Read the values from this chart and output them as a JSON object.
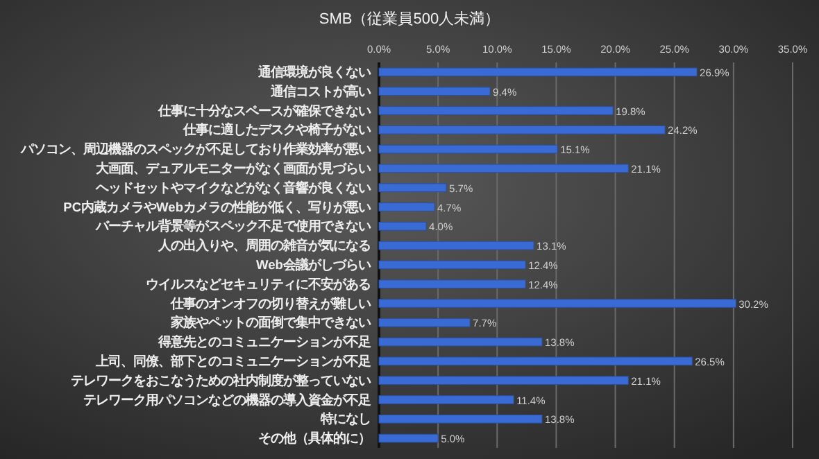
{
  "chart_data": {
    "type": "bar",
    "orientation": "horizontal",
    "title": "SMB（従業員500人未満）",
    "categories": [
      "通信環境が良くない",
      "通信コストが高い",
      "仕事に十分なスペースが確保できない",
      "仕事に適したデスクや椅子がない",
      "パソコン、周辺機器のスペックが不足しており作業効率が悪い",
      "大画面、デュアルモニターがなく画面が見づらい",
      "ヘッドセットやマイクなどがなく音響が良くない",
      "PC内蔵カメラやWebカメラの性能が低く、写りが悪い",
      "バーチャル背景等がスペック不足で使用できない",
      "人の出入りや、周囲の雑音が気になる",
      "Web会議がしづらい",
      "ウイルスなどセキュリティに不安がある",
      "仕事のオンオフの切り替えが難しい",
      "家族やペットの面倒で集中できない",
      "得意先とのコミュニケーションが不足",
      "上司、同僚、部下とのコミュニケーションが不足",
      "テレワークをおこなうための社内制度が整っていない",
      "テレワーク用パソコンなどの機器の導入資金が不足",
      "特になし",
      "その他（具体的に）"
    ],
    "values": [
      26.9,
      9.4,
      19.8,
      24.2,
      15.1,
      21.1,
      5.7,
      4.7,
      4.0,
      13.1,
      12.4,
      12.4,
      30.2,
      7.7,
      13.8,
      26.5,
      21.1,
      11.4,
      13.8,
      5.0
    ],
    "value_labels": [
      "26.9%",
      "9.4%",
      "19.8%",
      "24.2%",
      "15.1%",
      "21.1%",
      "5.7%",
      "4.7%",
      "4.0%",
      "13.1%",
      "12.4%",
      "12.4%",
      "30.2%",
      "7.7%",
      "13.8%",
      "26.5%",
      "21.1%",
      "11.4%",
      "13.8%",
      "5.0%"
    ],
    "color": "#3a6bd4",
    "xlim": [
      0,
      35
    ],
    "xticks": [
      {
        "value": 0,
        "label": "0.0%"
      },
      {
        "value": 5,
        "label": "5.0%"
      },
      {
        "value": 10,
        "label": "10.0%"
      },
      {
        "value": 15,
        "label": "15.0%"
      },
      {
        "value": 20,
        "label": "20.0%"
      },
      {
        "value": 25,
        "label": "25.0%"
      },
      {
        "value": 30,
        "label": "30.0%"
      },
      {
        "value": 35,
        "label": "35.0%"
      }
    ],
    "grid": "x"
  }
}
